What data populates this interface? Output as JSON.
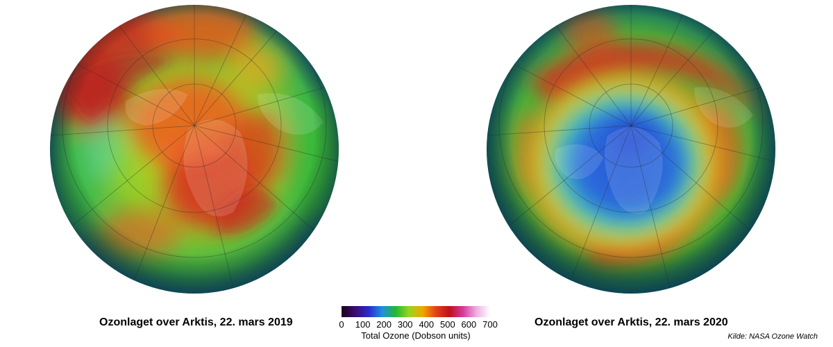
{
  "maps": [
    {
      "caption": "Ozonlaget over Arktis, 22. mars 2019",
      "state": "high ozone, red/orange over pole"
    },
    {
      "caption": "Ozonlaget over Arktis, 22. mars 2020",
      "state": "low ozone, blue hole over pole"
    }
  ],
  "colorbar": {
    "ticks": [
      "0",
      "100",
      "200",
      "300",
      "400",
      "500",
      "600",
      "700"
    ],
    "label": "Total Ozone (Dobson units)",
    "colors": [
      "#1a0020",
      "#3c0a6e",
      "#2a2acc",
      "#1f8fe0",
      "#22b833",
      "#9ad41e",
      "#f0a800",
      "#e2401a",
      "#c0101e",
      "#d43c9c",
      "#f0b0e0",
      "#ffffff"
    ]
  },
  "source": "Kilde: NASA Ozone Watch"
}
